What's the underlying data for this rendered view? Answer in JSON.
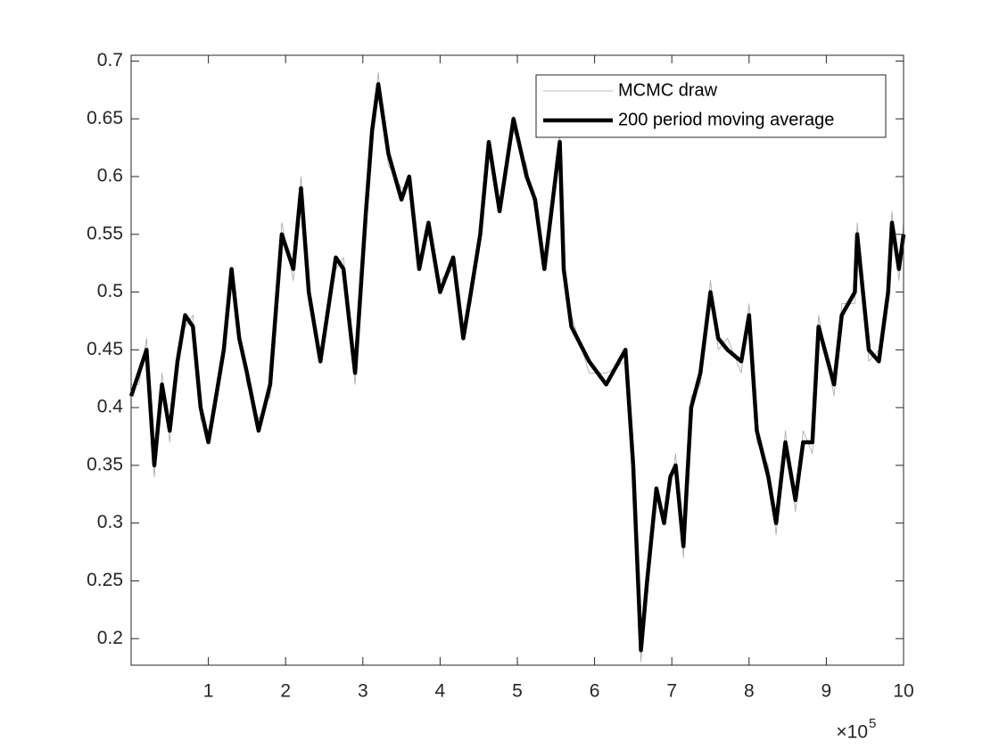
{
  "chart_data": {
    "type": "line",
    "x": [
      0,
      0.1,
      0.2,
      0.3,
      0.4,
      0.5,
      0.6,
      0.7,
      0.8,
      0.9,
      1.0,
      1.1,
      1.2,
      1.3,
      1.4,
      1.5,
      1.65,
      1.8,
      1.95,
      2.1,
      2.2,
      2.3,
      2.45,
      2.65,
      2.75,
      2.9,
      3.04,
      3.12,
      3.2,
      3.33,
      3.5,
      3.6,
      3.73,
      3.85,
      4.0,
      4.17,
      4.3,
      4.4,
      4.52,
      4.63,
      4.77,
      4.95,
      5.12,
      5.23,
      5.35,
      5.46,
      5.55,
      5.6,
      5.7,
      5.93,
      6.15,
      6.4,
      6.5,
      6.6,
      6.68,
      6.8,
      6.9,
      6.98,
      7.05,
      7.15,
      7.25,
      7.37,
      7.5,
      7.6,
      7.72,
      7.9,
      8.0,
      8.1,
      8.25,
      8.35,
      8.47,
      8.6,
      8.7,
      8.82,
      8.9,
      9.1,
      9.2,
      9.37,
      9.4,
      9.55,
      9.68,
      9.8,
      9.85,
      9.94,
      10
    ],
    "series": [
      {
        "name": "MCMC draw",
        "color": "#a6a6a6",
        "width": 0.8,
        "values": [
          0.42,
          0.42,
          0.46,
          0.34,
          0.43,
          0.37,
          0.45,
          0.47,
          0.48,
          0.39,
          0.38,
          0.4,
          0.46,
          0.51,
          0.47,
          0.42,
          0.39,
          0.41,
          0.56,
          0.51,
          0.6,
          0.49,
          0.45,
          0.52,
          0.53,
          0.42,
          0.58,
          0.63,
          0.69,
          0.61,
          0.59,
          0.59,
          0.53,
          0.55,
          0.51,
          0.52,
          0.47,
          0.49,
          0.56,
          0.62,
          0.58,
          0.64,
          0.61,
          0.57,
          0.53,
          0.57,
          0.64,
          0.51,
          0.48,
          0.43,
          0.43,
          0.44,
          0.36,
          0.18,
          0.26,
          0.32,
          0.31,
          0.33,
          0.36,
          0.27,
          0.41,
          0.42,
          0.51,
          0.45,
          0.46,
          0.43,
          0.49,
          0.37,
          0.35,
          0.29,
          0.38,
          0.31,
          0.38,
          0.36,
          0.48,
          0.41,
          0.49,
          0.49,
          0.56,
          0.44,
          0.45,
          0.49,
          0.57,
          0.51,
          0.56
        ]
      },
      {
        "name": "200 period moving average",
        "color": "#000000",
        "width": 4.5,
        "values": [
          0.41,
          0.43,
          0.45,
          0.35,
          0.42,
          0.38,
          0.44,
          0.48,
          0.47,
          0.4,
          0.37,
          0.41,
          0.45,
          0.52,
          0.46,
          0.43,
          0.38,
          0.42,
          0.55,
          0.52,
          0.59,
          0.5,
          0.44,
          0.53,
          0.52,
          0.43,
          0.57,
          0.64,
          0.68,
          0.62,
          0.58,
          0.6,
          0.52,
          0.56,
          0.5,
          0.53,
          0.46,
          0.5,
          0.55,
          0.63,
          0.57,
          0.65,
          0.6,
          0.58,
          0.52,
          0.58,
          0.63,
          0.52,
          0.47,
          0.44,
          0.42,
          0.45,
          0.35,
          0.19,
          0.25,
          0.33,
          0.3,
          0.34,
          0.35,
          0.28,
          0.4,
          0.43,
          0.5,
          0.46,
          0.45,
          0.44,
          0.48,
          0.38,
          0.34,
          0.3,
          0.37,
          0.32,
          0.37,
          0.37,
          0.47,
          0.42,
          0.48,
          0.5,
          0.55,
          0.45,
          0.44,
          0.5,
          0.56,
          0.52,
          0.55
        ]
      }
    ],
    "xlim": [
      0,
      10
    ],
    "xticks": [
      1,
      2,
      3,
      4,
      5,
      6,
      7,
      8,
      9,
      10
    ],
    "ylim": [
      0.177,
      0.705
    ],
    "yticks": [
      0.2,
      0.25,
      0.3,
      0.35,
      0.4,
      0.45,
      0.5,
      0.55,
      0.6,
      0.65,
      0.7
    ],
    "x_exponent_base": "×10",
    "x_exponent": "5",
    "legend": "top-right",
    "grid": false
  }
}
